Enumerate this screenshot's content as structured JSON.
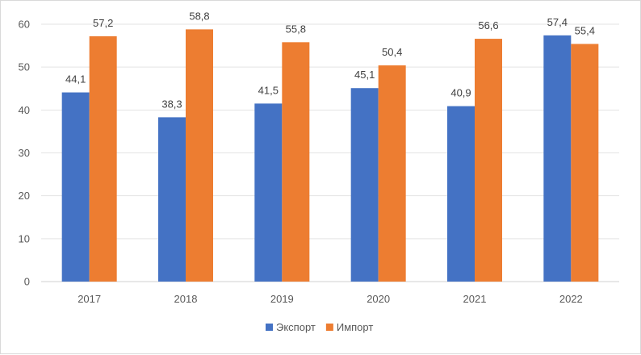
{
  "chart_data": {
    "type": "bar",
    "title": "",
    "xlabel": "",
    "ylabel": "",
    "categories": [
      "2017",
      "2018",
      "2019",
      "2020",
      "2021",
      "2022"
    ],
    "series": [
      {
        "name": "Экспорт",
        "color": "#4472c4",
        "values": [
          44.1,
          38.3,
          41.5,
          45.1,
          40.9,
          57.4
        ],
        "labels": [
          "44,1",
          "38,3",
          "41,5",
          "45,1",
          "40,9",
          "57,4"
        ]
      },
      {
        "name": "Импорт",
        "color": "#ed7d31",
        "values": [
          57.2,
          58.8,
          55.8,
          50.4,
          56.6,
          55.4
        ],
        "labels": [
          "57,2",
          "58,8",
          "55,8",
          "50,4",
          "56,6",
          "55,4"
        ]
      }
    ],
    "ylim": [
      0,
      60
    ],
    "yticks": [
      0,
      10,
      20,
      30,
      40,
      50,
      60
    ],
    "grid": true,
    "legend_position": "bottom"
  }
}
